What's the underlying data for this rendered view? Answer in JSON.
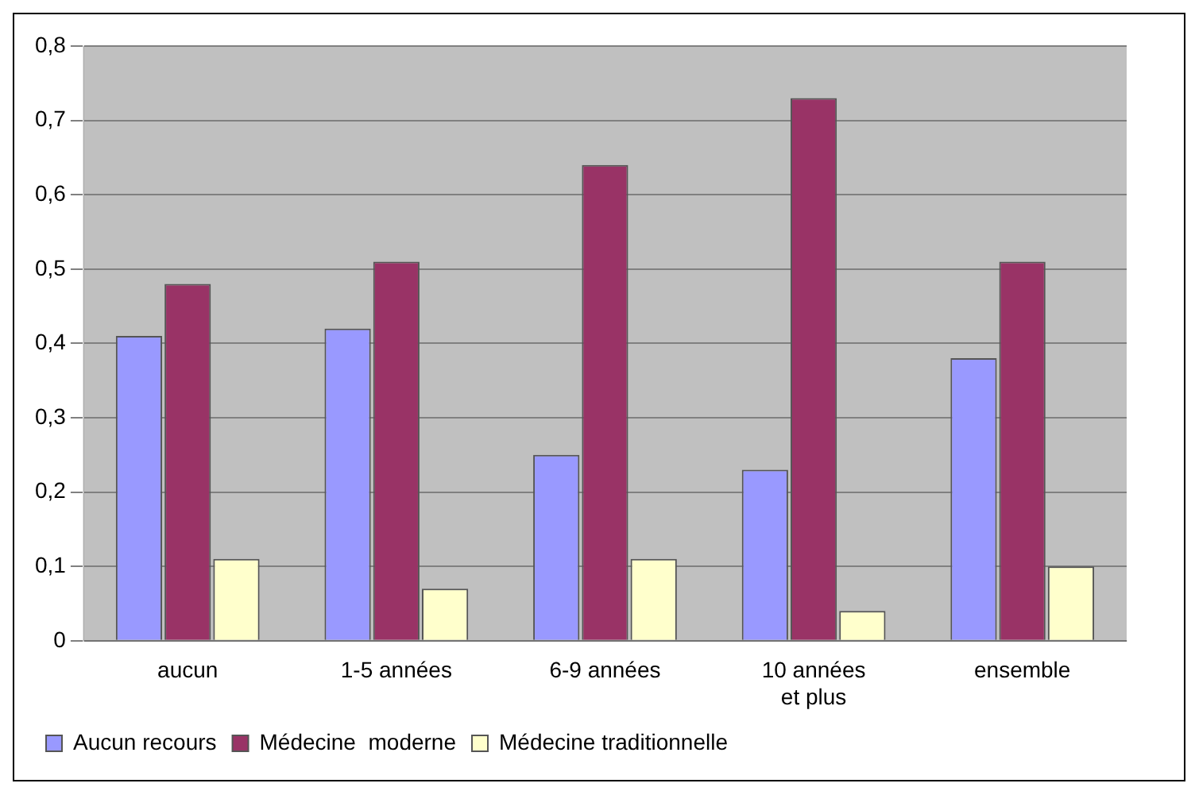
{
  "chart_data": {
    "type": "bar",
    "categories": [
      "aucun",
      "1-5 années",
      "6-9 années",
      "10 années et plus",
      "ensemble"
    ],
    "series": [
      {
        "name": "Aucun recours",
        "color": "#9999ff",
        "values": [
          0.41,
          0.42,
          0.25,
          0.23,
          0.38
        ]
      },
      {
        "name": "Médecine  moderne",
        "color": "#993366",
        "values": [
          0.48,
          0.51,
          0.64,
          0.73,
          0.51
        ]
      },
      {
        "name": "Médecine traditionnelle",
        "color": "#ffffcc",
        "values": [
          0.11,
          0.07,
          0.11,
          0.04,
          0.1
        ]
      }
    ],
    "ylim": [
      0,
      0.8
    ],
    "yticks": [
      0,
      {
        "value": 0.1,
        "label": "0,1"
      },
      {
        "value": 0.2,
        "label": "0,2"
      },
      {
        "value": 0.3,
        "label": "0,3"
      },
      {
        "value": 0.4,
        "label": "0,4"
      },
      {
        "value": 0.5,
        "label": "0,5"
      },
      {
        "value": 0.6,
        "label": "0,6"
      },
      {
        "value": 0.7,
        "label": "0,7"
      },
      {
        "value": 0.8,
        "label": "0,8"
      }
    ],
    "grid": "y",
    "legend": "bottom"
  }
}
